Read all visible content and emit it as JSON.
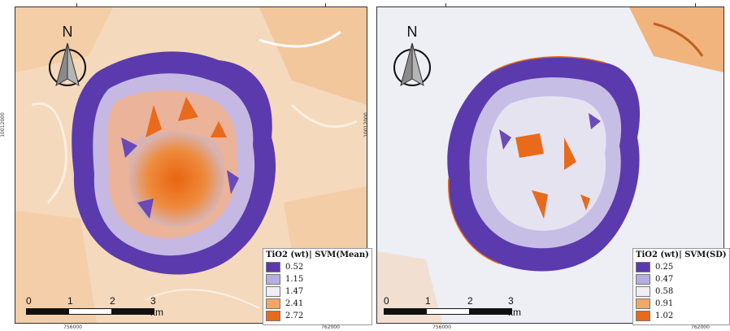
{
  "maps": [
    {
      "legend_title": "TiO2 (wt)| SVM(Mean)",
      "legend_items": [
        {
          "label": "0.52",
          "color": "#5b3aad"
        },
        {
          "label": "1.15",
          "color": "#b7aee0"
        },
        {
          "label": "1.47",
          "color": "#eeeef4"
        },
        {
          "label": "2.41",
          "color": "#f3a766"
        },
        {
          "label": "2.72",
          "color": "#e86a1a"
        }
      ],
      "north_label": "N",
      "scale_labels": [
        "0",
        "1",
        "2",
        "3 km"
      ],
      "x_axis_labels": [
        "756000",
        "762000"
      ],
      "y_axis_label": "10012000"
    },
    {
      "legend_title": "TiO2 (wt)| SVM(SD)",
      "legend_items": [
        {
          "label": "0.25",
          "color": "#5b3aad"
        },
        {
          "label": "0.47",
          "color": "#b7aee0"
        },
        {
          "label": "0.58",
          "color": "#eeeef4"
        },
        {
          "label": "0.91",
          "color": "#f3a766"
        },
        {
          "label": "1.02",
          "color": "#e86a1a"
        }
      ],
      "north_label": "N",
      "scale_labels": [
        "0",
        "1",
        "2",
        "3 km"
      ],
      "x_axis_labels": [
        "756000",
        "762000"
      ],
      "y_axis_label": "10012000"
    }
  ]
}
